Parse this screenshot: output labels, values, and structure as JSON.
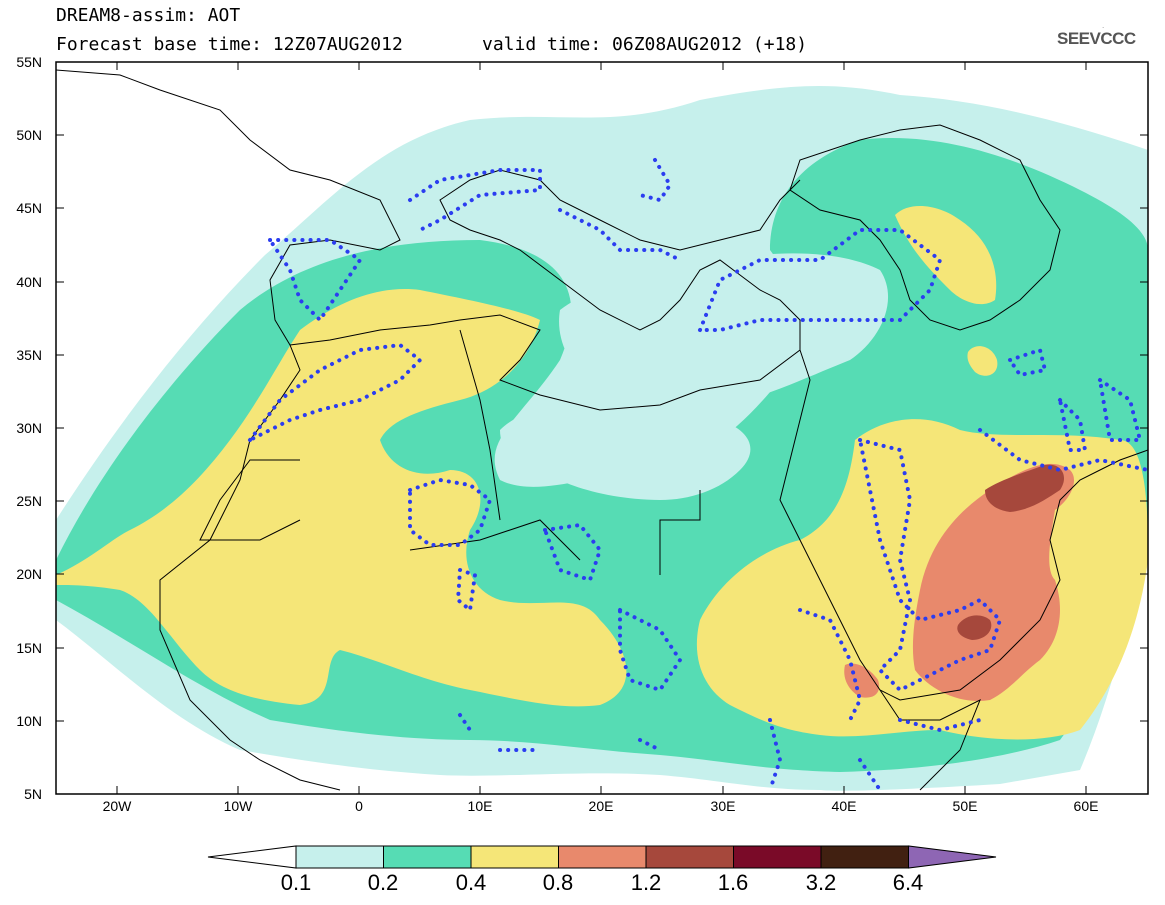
{
  "header": {
    "title_line1": "DREAM8-assim: AOT",
    "title_line2": "Forecast base time: 12Z07AUG2012",
    "valid_time": "valid time: 06Z08AUG2012 (+18)",
    "logo_text": "SEEVCCC"
  },
  "map": {
    "lat_labels": [
      "55N",
      "50N",
      "45N",
      "40N",
      "35N",
      "30N",
      "25N",
      "20N",
      "15N",
      "10N",
      "5N"
    ],
    "lon_labels": [
      "20W",
      "10W",
      "0",
      "10E",
      "20E",
      "30E",
      "40E",
      "50E",
      "60E"
    ],
    "extent": {
      "lon": [
        -25,
        65
      ],
      "lat": [
        5,
        55
      ]
    },
    "coastline_color": "#000000",
    "contour_dotted_color": "#2b3df0"
  },
  "colorbar": {
    "labels": [
      "0.1",
      "0.2",
      "0.4",
      "0.8",
      "1.2",
      "1.6",
      "3.2",
      "6.4"
    ],
    "colors": [
      "#c6f0ec",
      "#56dcb4",
      "#f5e678",
      "#e8896c",
      "#a6483c",
      "#7a0a28",
      "#412011",
      "#8e66b4"
    ],
    "under_color": "#ffffff"
  }
}
